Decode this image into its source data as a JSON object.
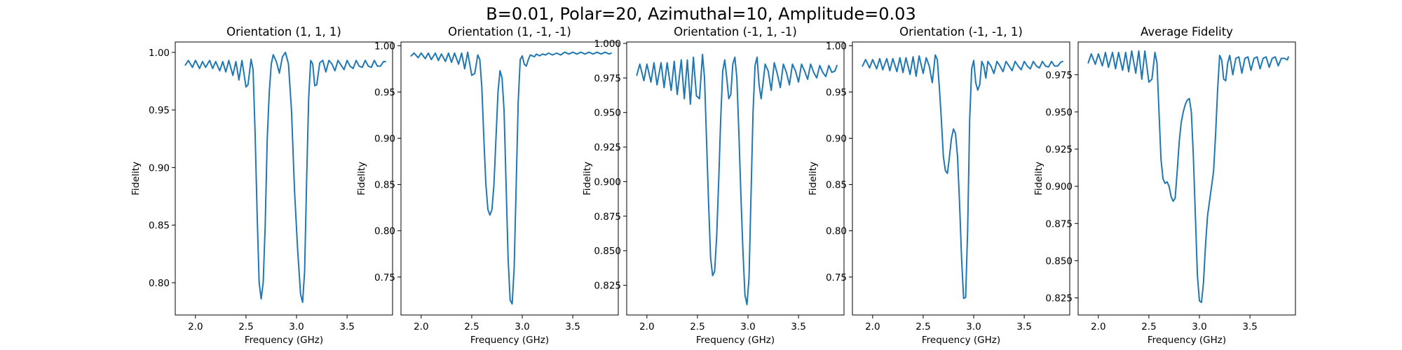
{
  "figure_title": "B=0.01, Polar=20, Azimuthal=10, Amplitude=0.03",
  "chart_data": [
    {
      "type": "line",
      "title": "Orientation (1, 1, 1)",
      "xlabel": "Frequency (GHz)",
      "ylabel": "Fidelity",
      "xlim": [
        1.8,
        3.95
      ],
      "ylim": [
        0.772,
        1.009
      ],
      "xticks": [
        2.0,
        2.5,
        3.0,
        3.5
      ],
      "yticks": [
        0.8,
        0.85,
        0.9,
        0.95,
        1.0
      ],
      "grid": false,
      "series": [
        {
          "color": "#1f77b4",
          "x": [
            1.9,
            1.93,
            1.97,
            2.0,
            2.04,
            2.07,
            2.1,
            2.14,
            2.17,
            2.2,
            2.24,
            2.27,
            2.3,
            2.33,
            2.37,
            2.4,
            2.43,
            2.46,
            2.5,
            2.52,
            2.55,
            2.57,
            2.59,
            2.61,
            2.63,
            2.65,
            2.67,
            2.69,
            2.71,
            2.73,
            2.75,
            2.77,
            2.8,
            2.83,
            2.86,
            2.89,
            2.92,
            2.95,
            2.98,
            3.01,
            3.04,
            3.06,
            3.08,
            3.1,
            3.12,
            3.14,
            3.16,
            3.18,
            3.2,
            3.23,
            3.26,
            3.29,
            3.32,
            3.35,
            3.38,
            3.41,
            3.44,
            3.47,
            3.5,
            3.53,
            3.56,
            3.59,
            3.62,
            3.65,
            3.68,
            3.71,
            3.74,
            3.77,
            3.8,
            3.83,
            3.86,
            3.88
          ],
          "y": [
            0.989,
            0.993,
            0.987,
            0.993,
            0.986,
            0.992,
            0.987,
            0.993,
            0.986,
            0.992,
            0.984,
            0.992,
            0.983,
            0.993,
            0.98,
            0.992,
            0.976,
            0.993,
            0.97,
            0.972,
            0.994,
            0.985,
            0.93,
            0.86,
            0.8,
            0.786,
            0.8,
            0.85,
            0.925,
            0.965,
            0.99,
            0.998,
            0.992,
            0.982,
            0.996,
            1.0,
            0.99,
            0.95,
            0.88,
            0.83,
            0.79,
            0.783,
            0.81,
            0.89,
            0.96,
            0.993,
            0.99,
            0.971,
            0.972,
            0.991,
            0.993,
            0.983,
            0.993,
            0.99,
            0.984,
            0.993,
            0.989,
            0.985,
            0.993,
            0.988,
            0.986,
            0.993,
            0.988,
            0.987,
            0.993,
            0.988,
            0.987,
            0.993,
            0.988,
            0.988,
            0.992,
            0.992
          ]
        }
      ]
    },
    {
      "type": "line",
      "title": "Orientation (1, -1, -1)",
      "xlabel": "Frequency (GHz)",
      "ylabel": "Fidelity",
      "xlim": [
        1.8,
        3.95
      ],
      "ylim": [
        0.709,
        1.004
      ],
      "xticks": [
        2.0,
        2.5,
        3.0,
        3.5
      ],
      "yticks": [
        0.75,
        0.8,
        0.85,
        0.9,
        0.95,
        1.0
      ],
      "grid": false,
      "series": [
        {
          "color": "#1f77b4",
          "x": [
            1.9,
            1.93,
            1.97,
            2.0,
            2.04,
            2.07,
            2.1,
            2.14,
            2.17,
            2.2,
            2.24,
            2.27,
            2.3,
            2.33,
            2.37,
            2.4,
            2.43,
            2.46,
            2.5,
            2.53,
            2.56,
            2.58,
            2.6,
            2.62,
            2.64,
            2.66,
            2.68,
            2.7,
            2.72,
            2.74,
            2.76,
            2.78,
            2.8,
            2.82,
            2.84,
            2.86,
            2.88,
            2.9,
            2.92,
            2.94,
            2.96,
            2.98,
            3.0,
            3.02,
            3.04,
            3.06,
            3.08,
            3.1,
            3.12,
            3.14,
            3.17,
            3.2,
            3.23,
            3.26,
            3.3,
            3.34,
            3.38,
            3.42,
            3.46,
            3.5,
            3.54,
            3.58,
            3.62,
            3.66,
            3.7,
            3.74,
            3.78,
            3.82,
            3.86,
            3.88
          ],
          "y": [
            0.989,
            0.992,
            0.987,
            0.992,
            0.986,
            0.992,
            0.985,
            0.992,
            0.984,
            0.991,
            0.983,
            0.992,
            0.982,
            0.992,
            0.98,
            0.992,
            0.975,
            0.993,
            0.968,
            0.97,
            0.99,
            0.985,
            0.955,
            0.9,
            0.85,
            0.823,
            0.817,
            0.823,
            0.85,
            0.9,
            0.95,
            0.973,
            0.965,
            0.93,
            0.85,
            0.77,
            0.725,
            0.721,
            0.76,
            0.85,
            0.94,
            0.985,
            0.989,
            0.98,
            0.978,
            0.985,
            0.99,
            0.989,
            0.988,
            0.991,
            0.989,
            0.991,
            0.99,
            0.992,
            0.99,
            0.992,
            0.99,
            0.993,
            0.991,
            0.993,
            0.991,
            0.993,
            0.991,
            0.993,
            0.991,
            0.993,
            0.991,
            0.993,
            0.991,
            0.992
          ]
        }
      ]
    },
    {
      "type": "line",
      "title": "Orientation (-1, 1, -1)",
      "xlabel": "Frequency (GHz)",
      "ylabel": "Fidelity",
      "xlim": [
        1.8,
        3.95
      ],
      "ylim": [
        0.8035,
        1.001
      ],
      "xticks": [
        2.0,
        2.5,
        3.0,
        3.5
      ],
      "yticks": [
        0.825,
        0.85,
        0.875,
        0.9,
        0.925,
        0.95,
        0.975,
        1.0
      ],
      "grid": false,
      "series": [
        {
          "color": "#1f77b4",
          "x": [
            1.9,
            1.93,
            1.97,
            2.0,
            2.04,
            2.07,
            2.1,
            2.14,
            2.17,
            2.2,
            2.24,
            2.27,
            2.3,
            2.34,
            2.37,
            2.4,
            2.43,
            2.46,
            2.49,
            2.52,
            2.55,
            2.57,
            2.59,
            2.61,
            2.63,
            2.65,
            2.67,
            2.69,
            2.71,
            2.73,
            2.75,
            2.77,
            2.79,
            2.81,
            2.83,
            2.85,
            2.87,
            2.89,
            2.91,
            2.93,
            2.95,
            2.97,
            2.99,
            3.01,
            3.03,
            3.05,
            3.07,
            3.09,
            3.11,
            3.13,
            3.15,
            3.17,
            3.2,
            3.23,
            3.26,
            3.29,
            3.32,
            3.35,
            3.38,
            3.41,
            3.44,
            3.47,
            3.5,
            3.53,
            3.56,
            3.59,
            3.62,
            3.65,
            3.68,
            3.71,
            3.74,
            3.77,
            3.8,
            3.83,
            3.86,
            3.88
          ],
          "y": [
            0.977,
            0.985,
            0.973,
            0.985,
            0.972,
            0.986,
            0.97,
            0.986,
            0.968,
            0.986,
            0.966,
            0.987,
            0.963,
            0.988,
            0.96,
            0.988,
            0.956,
            0.99,
            0.962,
            0.96,
            0.992,
            0.975,
            0.93,
            0.885,
            0.845,
            0.832,
            0.835,
            0.86,
            0.9,
            0.945,
            0.98,
            0.988,
            0.975,
            0.96,
            0.963,
            0.985,
            0.99,
            0.975,
            0.935,
            0.89,
            0.85,
            0.818,
            0.811,
            0.83,
            0.89,
            0.95,
            0.984,
            0.99,
            0.97,
            0.96,
            0.972,
            0.985,
            0.98,
            0.966,
            0.986,
            0.978,
            0.968,
            0.985,
            0.979,
            0.97,
            0.985,
            0.98,
            0.972,
            0.985,
            0.98,
            0.974,
            0.985,
            0.979,
            0.975,
            0.984,
            0.979,
            0.976,
            0.984,
            0.979,
            0.98,
            0.984
          ]
        }
      ]
    },
    {
      "type": "line",
      "title": "Orientation (-1, -1, 1)",
      "xlabel": "Frequency (GHz)",
      "ylabel": "Fidelity",
      "xlim": [
        1.8,
        3.95
      ],
      "ylim": [
        0.709,
        1.004
      ],
      "xticks": [
        2.0,
        2.5,
        3.0,
        3.5
      ],
      "yticks": [
        0.75,
        0.8,
        0.85,
        0.9,
        0.95,
        1.0
      ],
      "grid": false,
      "series": [
        {
          "color": "#1f77b4",
          "x": [
            1.9,
            1.93,
            1.97,
            2.0,
            2.04,
            2.07,
            2.1,
            2.14,
            2.17,
            2.2,
            2.24,
            2.27,
            2.3,
            2.33,
            2.37,
            2.4,
            2.43,
            2.46,
            2.5,
            2.53,
            2.56,
            2.59,
            2.62,
            2.64,
            2.66,
            2.68,
            2.7,
            2.72,
            2.74,
            2.76,
            2.78,
            2.8,
            2.82,
            2.84,
            2.86,
            2.88,
            2.9,
            2.92,
            2.94,
            2.96,
            2.98,
            3.0,
            3.02,
            3.04,
            3.06,
            3.08,
            3.1,
            3.12,
            3.14,
            3.17,
            3.2,
            3.23,
            3.26,
            3.29,
            3.32,
            3.35,
            3.38,
            3.41,
            3.44,
            3.47,
            3.5,
            3.53,
            3.56,
            3.59,
            3.62,
            3.65,
            3.68,
            3.71,
            3.74,
            3.77,
            3.8,
            3.83,
            3.86,
            3.88
          ],
          "y": [
            0.978,
            0.985,
            0.976,
            0.985,
            0.975,
            0.986,
            0.974,
            0.986,
            0.973,
            0.986,
            0.972,
            0.987,
            0.971,
            0.987,
            0.969,
            0.988,
            0.967,
            0.989,
            0.97,
            0.987,
            0.978,
            0.96,
            0.99,
            0.985,
            0.955,
            0.92,
            0.88,
            0.865,
            0.862,
            0.88,
            0.9,
            0.91,
            0.905,
            0.88,
            0.83,
            0.77,
            0.727,
            0.728,
            0.8,
            0.92,
            0.975,
            0.984,
            0.96,
            0.952,
            0.958,
            0.983,
            0.978,
            0.965,
            0.983,
            0.978,
            0.97,
            0.983,
            0.978,
            0.972,
            0.983,
            0.978,
            0.973,
            0.983,
            0.978,
            0.974,
            0.983,
            0.978,
            0.975,
            0.983,
            0.978,
            0.976,
            0.983,
            0.978,
            0.977,
            0.983,
            0.978,
            0.978,
            0.982,
            0.983
          ]
        }
      ]
    },
    {
      "type": "line",
      "title": "Average Fidelity",
      "xlabel": "Frequency (GHz)",
      "ylabel": "Fidelity",
      "xlim": [
        1.8,
        3.95
      ],
      "ylim": [
        0.8135,
        0.997
      ],
      "xticks": [
        2.0,
        2.5,
        3.0,
        3.5
      ],
      "yticks": [
        0.825,
        0.85,
        0.875,
        0.9,
        0.925,
        0.95,
        0.975
      ],
      "grid": false,
      "series": [
        {
          "color": "#1f77b4",
          "x": [
            1.9,
            1.93,
            1.97,
            2.0,
            2.04,
            2.07,
            2.1,
            2.14,
            2.17,
            2.2,
            2.24,
            2.27,
            2.3,
            2.33,
            2.37,
            2.4,
            2.43,
            2.46,
            2.5,
            2.53,
            2.56,
            2.58,
            2.6,
            2.62,
            2.64,
            2.66,
            2.68,
            2.7,
            2.72,
            2.74,
            2.76,
            2.78,
            2.8,
            2.82,
            2.84,
            2.86,
            2.88,
            2.9,
            2.92,
            2.94,
            2.96,
            2.98,
            3.0,
            3.02,
            3.04,
            3.06,
            3.08,
            3.1,
            3.12,
            3.14,
            3.16,
            3.18,
            3.2,
            3.22,
            3.24,
            3.26,
            3.28,
            3.3,
            3.33,
            3.36,
            3.39,
            3.42,
            3.45,
            3.48,
            3.51,
            3.54,
            3.57,
            3.6,
            3.63,
            3.66,
            3.69,
            3.72,
            3.75,
            3.78,
            3.81,
            3.84,
            3.87,
            3.88
          ],
          "y": [
            0.983,
            0.989,
            0.982,
            0.989,
            0.981,
            0.99,
            0.98,
            0.99,
            0.979,
            0.99,
            0.978,
            0.99,
            0.977,
            0.991,
            0.976,
            0.991,
            0.972,
            0.991,
            0.97,
            0.972,
            0.99,
            0.983,
            0.95,
            0.918,
            0.905,
            0.902,
            0.903,
            0.9,
            0.893,
            0.89,
            0.892,
            0.91,
            0.93,
            0.943,
            0.95,
            0.955,
            0.958,
            0.959,
            0.95,
            0.92,
            0.88,
            0.84,
            0.823,
            0.822,
            0.835,
            0.86,
            0.88,
            0.89,
            0.9,
            0.91,
            0.935,
            0.965,
            0.988,
            0.985,
            0.972,
            0.971,
            0.983,
            0.988,
            0.975,
            0.986,
            0.987,
            0.976,
            0.986,
            0.987,
            0.978,
            0.986,
            0.987,
            0.979,
            0.986,
            0.987,
            0.98,
            0.986,
            0.987,
            0.981,
            0.986,
            0.986,
            0.985,
            0.987
          ]
        }
      ]
    }
  ]
}
